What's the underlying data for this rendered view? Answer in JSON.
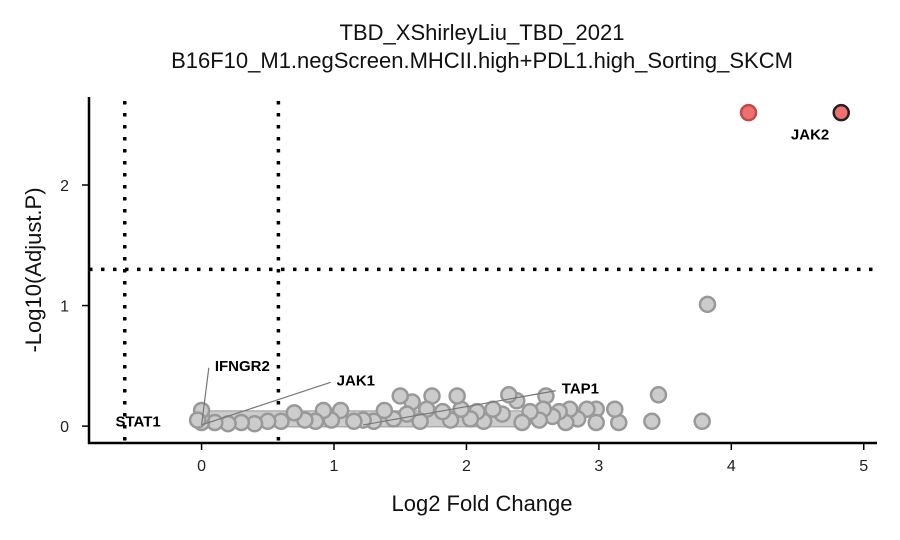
{
  "chart_data": {
    "type": "scatter",
    "title": "TBD_XShirleyLiu_TBD_2021",
    "subtitle": "B16F10_M1.negScreen.MHCII.high+PDL1.high_Sorting_SKCM",
    "xlabel": "Log2 Fold Change",
    "ylabel": "-Log10(Adjust.P)",
    "xlim": [
      -0.85,
      5.1
    ],
    "ylim": [
      -0.14,
      2.73
    ],
    "x_ticks": [
      "0",
      "1",
      "2",
      "3",
      "4",
      "5"
    ],
    "y_ticks": [
      "0",
      "1",
      "2"
    ],
    "thresholds": {
      "x": [
        -0.58,
        0.58
      ],
      "y": 1.3
    },
    "grid": false,
    "colors": {
      "significant": "#f07070",
      "significant_stroke": "#c04a4a",
      "highlight_stroke": "#222222",
      "background": "#cccccc",
      "background_stroke": "#999999",
      "threshold_line": "#000000"
    },
    "highlighted": [
      {
        "x": 4.13,
        "y": 2.6,
        "style": "significant"
      },
      {
        "x": 4.83,
        "y": 2.6,
        "style": "highlight"
      }
    ],
    "points": [
      {
        "x": 3.82,
        "y": 1.01
      },
      {
        "x": 3.45,
        "y": 0.26
      },
      {
        "x": 3.4,
        "y": 0.04
      },
      {
        "x": 3.78,
        "y": 0.04
      },
      {
        "x": 3.15,
        "y": 0.03
      },
      {
        "x": 3.12,
        "y": 0.14
      },
      {
        "x": 2.98,
        "y": 0.14
      },
      {
        "x": 2.98,
        "y": 0.03
      },
      {
        "x": 2.91,
        "y": 0.14
      },
      {
        "x": 2.84,
        "y": 0.06
      },
      {
        "x": 2.78,
        "y": 0.14
      },
      {
        "x": 2.75,
        "y": 0.03
      },
      {
        "x": 2.7,
        "y": 0.12
      },
      {
        "x": 2.65,
        "y": 0.08
      },
      {
        "x": 2.6,
        "y": 0.25
      },
      {
        "x": 2.58,
        "y": 0.14
      },
      {
        "x": 2.55,
        "y": 0.05
      },
      {
        "x": 2.48,
        "y": 0.12
      },
      {
        "x": 2.42,
        "y": 0.03
      },
      {
        "x": 2.38,
        "y": 0.21
      },
      {
        "x": 2.32,
        "y": 0.26
      },
      {
        "x": 2.27,
        "y": 0.1
      },
      {
        "x": 2.2,
        "y": 0.14
      },
      {
        "x": 2.13,
        "y": 0.04
      },
      {
        "x": 2.08,
        "y": 0.12
      },
      {
        "x": 2.03,
        "y": 0.06
      },
      {
        "x": 1.96,
        "y": 0.14
      },
      {
        "x": 1.93,
        "y": 0.25
      },
      {
        "x": 1.88,
        "y": 0.05
      },
      {
        "x": 1.82,
        "y": 0.12
      },
      {
        "x": 1.74,
        "y": 0.25
      },
      {
        "x": 1.7,
        "y": 0.14
      },
      {
        "x": 1.65,
        "y": 0.04
      },
      {
        "x": 1.59,
        "y": 0.2
      },
      {
        "x": 1.55,
        "y": 0.1
      },
      {
        "x": 1.5,
        "y": 0.25
      },
      {
        "x": 1.45,
        "y": 0.06
      },
      {
        "x": 1.38,
        "y": 0.13
      },
      {
        "x": 1.3,
        "y": 0.04
      },
      {
        "x": 1.22,
        "y": 0.05
      },
      {
        "x": 1.15,
        "y": 0.04
      },
      {
        "x": 1.05,
        "y": 0.13
      },
      {
        "x": 0.98,
        "y": 0.05
      },
      {
        "x": 0.92,
        "y": 0.13
      },
      {
        "x": 0.86,
        "y": 0.04
      },
      {
        "x": 0.78,
        "y": 0.05
      },
      {
        "x": 0.7,
        "y": 0.11
      },
      {
        "x": 0.6,
        "y": 0.04
      },
      {
        "x": 0.5,
        "y": 0.04
      },
      {
        "x": 0.4,
        "y": 0.02
      },
      {
        "x": 0.3,
        "y": 0.03
      },
      {
        "x": 0.2,
        "y": 0.02
      },
      {
        "x": 0.1,
        "y": 0.03
      },
      {
        "x": 0.0,
        "y": 0.03
      },
      {
        "x": 0.0,
        "y": 0.08
      },
      {
        "x": 0.0,
        "y": 0.13
      },
      {
        "x": -0.03,
        "y": 0.05
      }
    ],
    "labels": [
      {
        "text": "JAK2",
        "x": 4.83,
        "y": 2.6,
        "lx": 4.45,
        "ly": 2.42,
        "line": false
      },
      {
        "text": "TAP1",
        "x": 1.22,
        "y": 0.01,
        "lx": 2.72,
        "ly": 0.31,
        "line": true
      },
      {
        "text": "JAK1",
        "x": 0.0,
        "y": 0.01,
        "lx": 1.02,
        "ly": 0.38,
        "line": true
      },
      {
        "text": "IFNGR2",
        "x": 0.0,
        "y": 0.01,
        "lx": 0.1,
        "ly": 0.5,
        "line": true
      },
      {
        "text": "STAT1",
        "x": 0.0,
        "y": 0.01,
        "lx": -0.65,
        "ly": 0.04,
        "line": false
      }
    ]
  }
}
